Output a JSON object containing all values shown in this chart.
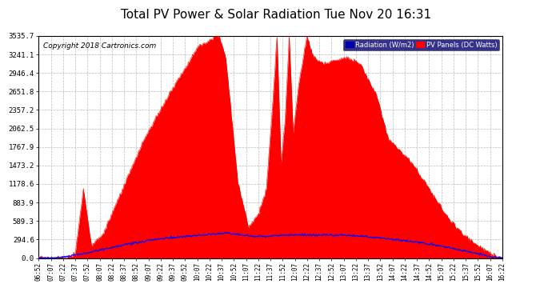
{
  "title": "Total PV Power & Solar Radiation Tue Nov 20 16:31",
  "copyright": "Copyright 2018 Cartronics.com",
  "legend_radiation": "Radiation (W/m2)",
  "legend_pv": "PV Panels (DC Watts)",
  "y_ticks": [
    0.0,
    294.6,
    589.3,
    883.9,
    1178.6,
    1473.2,
    1767.9,
    2062.5,
    2357.2,
    2651.8,
    2946.4,
    3241.1,
    3535.7
  ],
  "y_max": 3535.7,
  "background_color": "#ffffff",
  "plot_bg_color": "#ffffff",
  "grid_color": "#bbbbbb",
  "fill_color": "#ff0000",
  "line_color": "#ff0000",
  "radiation_color": "#0000ff",
  "title_color": "#000000",
  "title_fontsize": 11,
  "copyright_fontsize": 6.5,
  "x_labels": [
    "06:52",
    "07:07",
    "07:22",
    "07:37",
    "07:52",
    "08:07",
    "08:22",
    "08:37",
    "08:52",
    "09:07",
    "09:22",
    "09:37",
    "09:52",
    "10:07",
    "10:22",
    "10:37",
    "10:52",
    "11:07",
    "11:22",
    "11:37",
    "11:52",
    "12:07",
    "12:22",
    "12:37",
    "12:52",
    "13:07",
    "13:22",
    "13:37",
    "13:52",
    "14:07",
    "14:22",
    "14:37",
    "14:52",
    "15:07",
    "15:22",
    "15:37",
    "15:52",
    "16:07",
    "16:22"
  ]
}
